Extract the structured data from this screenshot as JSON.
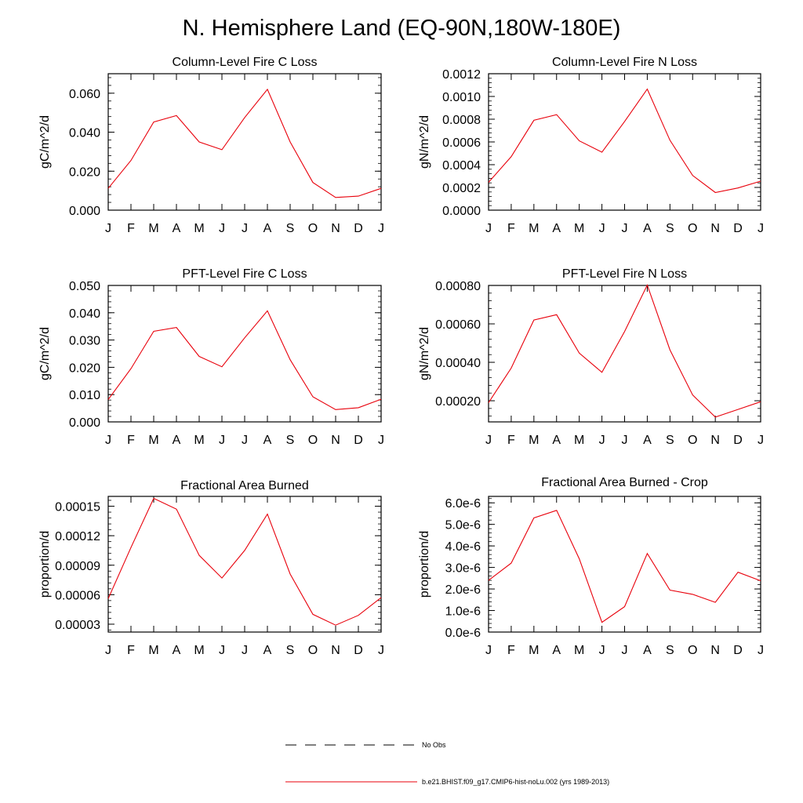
{
  "title": "N. Hemisphere Land (EQ-90N,180W-180E)",
  "legend": [
    {
      "label": "No Obs",
      "color": "#000000",
      "dash": true
    },
    {
      "label": "b.e21.BHIST.f09_g17.CMIP6-hist-noLu.002 (yrs 1989-2013)",
      "color": "#e8000b",
      "dash": false
    }
  ],
  "chart_data": [
    {
      "type": "line",
      "title": "Column-Level Fire C Loss",
      "ylabel": "gC/m^2/d",
      "categories": [
        "J",
        "F",
        "M",
        "A",
        "M",
        "J",
        "J",
        "A",
        "S",
        "O",
        "N",
        "D",
        "J"
      ],
      "ylim": [
        0,
        0.07
      ],
      "yticks": [
        0.0,
        0.02,
        0.04,
        0.06
      ],
      "yticklabels": [
        "0.000",
        "0.020",
        "0.040",
        "0.060"
      ],
      "series": [
        {
          "values": [
            0.0112,
            0.0255,
            0.0452,
            0.0485,
            0.035,
            0.031,
            0.0475,
            0.062,
            0.035,
            0.0142,
            0.0065,
            0.0072,
            0.0112
          ]
        }
      ]
    },
    {
      "type": "line",
      "title": "Column-Level Fire N Loss",
      "ylabel": "gN/m^2/d",
      "categories": [
        "J",
        "F",
        "M",
        "A",
        "M",
        "J",
        "J",
        "A",
        "S",
        "O",
        "N",
        "D",
        "J"
      ],
      "ylim": [
        0,
        0.0012
      ],
      "yticks": [
        0.0,
        0.0002,
        0.0004,
        0.0006,
        0.0008,
        0.001,
        0.0012
      ],
      "yticklabels": [
        "0.0000",
        "0.0002",
        "0.0004",
        "0.0006",
        "0.0008",
        "0.0010",
        "0.0012"
      ],
      "series": [
        {
          "values": [
            0.000245,
            0.00047,
            0.00079,
            0.00084,
            0.00061,
            0.00051,
            0.00078,
            0.001065,
            0.000615,
            0.000305,
            0.000155,
            0.000195,
            0.000255
          ]
        }
      ]
    },
    {
      "type": "line",
      "title": "PFT-Level Fire C Loss",
      "ylabel": "gC/m^2/d",
      "categories": [
        "J",
        "F",
        "M",
        "A",
        "M",
        "J",
        "J",
        "A",
        "S",
        "O",
        "N",
        "D",
        "J"
      ],
      "ylim": [
        0,
        0.05
      ],
      "yticks": [
        0.0,
        0.01,
        0.02,
        0.03,
        0.04,
        0.05
      ],
      "yticklabels": [
        "0.000",
        "0.010",
        "0.020",
        "0.030",
        "0.040",
        "0.050"
      ],
      "series": [
        {
          "values": [
            0.0082,
            0.0195,
            0.0332,
            0.0346,
            0.024,
            0.0202,
            0.0308,
            0.0407,
            0.0228,
            0.0092,
            0.0045,
            0.0052,
            0.0083
          ]
        }
      ]
    },
    {
      "type": "line",
      "title": "PFT-Level Fire N Loss",
      "ylabel": "gN/m^2/d",
      "categories": [
        "J",
        "F",
        "M",
        "A",
        "M",
        "J",
        "J",
        "A",
        "S",
        "O",
        "N",
        "D",
        "J"
      ],
      "ylim": [
        9e-05,
        0.0008
      ],
      "yticks": [
        0.0002,
        0.0004,
        0.0006,
        0.0008
      ],
      "yticklabels": [
        "0.00020",
        "0.00040",
        "0.00060",
        "0.00080"
      ],
      "series": [
        {
          "values": [
            0.00019,
            0.00037,
            0.00062,
            0.000648,
            0.000448,
            0.000348,
            0.00056,
            0.000802,
            0.000465,
            0.00023,
            0.000115,
            0.000155,
            0.000195
          ]
        }
      ]
    },
    {
      "type": "line",
      "title": "Fractional Area Burned",
      "ylabel": "proportion/d",
      "categories": [
        "J",
        "F",
        "M",
        "A",
        "M",
        "J",
        "J",
        "A",
        "S",
        "O",
        "N",
        "D",
        "J"
      ],
      "ylim": [
        2.2e-05,
        0.00016
      ],
      "yticks": [
        3e-05,
        6e-05,
        9e-05,
        0.00012,
        0.00015
      ],
      "yticklabels": [
        "0.00003",
        "0.00006",
        "0.00009",
        "0.00012",
        "0.00015"
      ],
      "series": [
        {
          "values": [
            5.6e-05,
            0.000108,
            0.000158,
            0.000147,
            0.0001,
            7.7e-05,
            0.000105,
            0.000142,
            8.1e-05,
            4e-05,
            2.9e-05,
            3.9e-05,
            5.7e-05
          ]
        }
      ]
    },
    {
      "type": "line",
      "title": "Fractional Area Burned - Crop",
      "ylabel": "proportion/d",
      "categories": [
        "J",
        "F",
        "M",
        "A",
        "M",
        "J",
        "J",
        "A",
        "S",
        "O",
        "N",
        "D",
        "J"
      ],
      "ylim": [
        0,
        6.3e-06
      ],
      "yticks": [
        0.0,
        1e-06,
        2e-06,
        3e-06,
        4e-06,
        5e-06,
        6e-06
      ],
      "yticklabels": [
        "0.0e-6",
        "1.0e-6",
        "2.0e-6",
        "3.0e-6",
        "4.0e-6",
        "5.0e-6",
        "6.0e-6"
      ],
      "series": [
        {
          "values": [
            2.4e-06,
            3.2e-06,
            5.3e-06,
            5.65e-06,
            3.4e-06,
            4.5e-07,
            1.18e-06,
            3.65e-06,
            1.95e-06,
            1.75e-06,
            1.38e-06,
            2.78e-06,
            2.38e-06
          ]
        }
      ]
    }
  ]
}
